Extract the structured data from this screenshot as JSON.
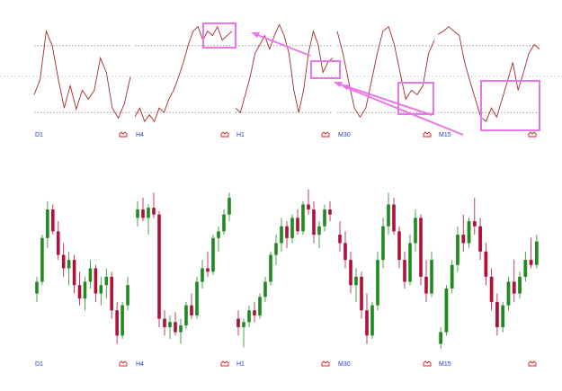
{
  "chart_data": [
    {
      "type": "line",
      "title": "D1",
      "color": "#a52a2a",
      "ylim": [
        0,
        100
      ],
      "levels": [
        80,
        20
      ],
      "values": [
        36,
        50,
        93,
        80,
        50,
        24,
        44,
        23,
        40,
        32,
        40,
        69,
        56,
        24,
        15,
        28,
        52
      ]
    },
    {
      "type": "line",
      "title": "H4",
      "color": "#a52a2a",
      "ylim": [
        0,
        100
      ],
      "levels": [
        80,
        20
      ],
      "values": [
        16,
        24,
        12,
        18,
        12,
        24,
        20,
        32,
        40,
        52,
        65,
        81,
        93,
        97,
        85,
        93,
        89,
        97,
        85,
        89,
        93
      ]
    },
    {
      "type": "line",
      "title": "H1",
      "color": "#a52a2a",
      "ylim": [
        0,
        100
      ],
      "levels": [
        80,
        20
      ],
      "values": [
        24,
        20,
        36,
        52,
        73,
        81,
        89,
        77,
        89,
        99,
        89,
        73,
        40,
        20,
        40,
        73,
        93,
        81,
        56,
        65,
        69
      ]
    },
    {
      "type": "line",
      "title": "M30",
      "color": "#a52a2a",
      "ylim": [
        0,
        100
      ],
      "levels": [
        80,
        20
      ],
      "values": [
        93,
        73,
        48,
        24,
        16,
        24,
        48,
        73,
        93,
        97,
        81,
        56,
        32,
        40,
        36,
        44,
        73,
        85
      ]
    },
    {
      "type": "line",
      "title": "M15",
      "color": "#a52a2a",
      "ylim": [
        0,
        100
      ],
      "levels": [
        80,
        20
      ],
      "values": [
        90,
        93,
        97,
        93,
        89,
        65,
        48,
        32,
        16,
        12,
        24,
        16,
        32,
        48,
        65,
        40,
        56,
        73,
        81,
        77
      ]
    },
    {
      "type": "candlestick",
      "title": "D1",
      "up_color": "#1f8a1f",
      "down_color": "#b0103a",
      "ylim": [
        0,
        100
      ],
      "open": [
        35,
        42,
        68,
        85,
        72,
        58,
        50,
        55,
        40,
        32,
        42,
        50,
        35,
        40,
        45,
        25,
        10,
        28
      ],
      "high": [
        45,
        70,
        90,
        88,
        78,
        65,
        60,
        58,
        48,
        45,
        55,
        52,
        45,
        50,
        48,
        30,
        30,
        45
      ],
      "low": [
        30,
        40,
        62,
        70,
        55,
        45,
        40,
        35,
        28,
        25,
        38,
        30,
        28,
        32,
        20,
        5,
        8,
        25
      ],
      "close": [
        42,
        68,
        85,
        72,
        58,
        50,
        55,
        40,
        32,
        42,
        50,
        35,
        40,
        45,
        25,
        10,
        28,
        40
      ]
    },
    {
      "type": "candlestick",
      "title": "H4",
      "up_color": "#1f8a1f",
      "down_color": "#b0103a",
      "ylim": [
        0,
        100
      ],
      "open": [
        80,
        85,
        80,
        86,
        82,
        20,
        15,
        18,
        12,
        16,
        28,
        22,
        42,
        50,
        48,
        68,
        72,
        82
      ],
      "high": [
        90,
        92,
        88,
        95,
        84,
        25,
        22,
        24,
        20,
        30,
        35,
        45,
        55,
        60,
        70,
        75,
        85,
        95
      ],
      "low": [
        75,
        78,
        70,
        80,
        15,
        10,
        8,
        10,
        5,
        14,
        20,
        20,
        38,
        45,
        46,
        60,
        70,
        78
      ],
      "close": [
        85,
        80,
        86,
        82,
        20,
        15,
        18,
        12,
        16,
        28,
        22,
        42,
        50,
        48,
        68,
        72,
        82,
        92
      ]
    },
    {
      "type": "candlestick",
      "title": "H1",
      "up_color": "#1f8a1f",
      "down_color": "#b0103a",
      "ylim": [
        0,
        100
      ],
      "open": [
        20,
        15,
        18,
        25,
        22,
        33,
        42,
        58,
        65,
        75,
        68,
        80,
        72,
        88,
        85,
        70,
        75,
        85
      ],
      "high": [
        25,
        20,
        28,
        30,
        35,
        45,
        60,
        70,
        80,
        78,
        82,
        85,
        90,
        97,
        90,
        78,
        88,
        90
      ],
      "low": [
        10,
        3,
        15,
        18,
        20,
        30,
        40,
        52,
        60,
        62,
        65,
        70,
        70,
        82,
        65,
        62,
        72,
        78
      ],
      "close": [
        15,
        18,
        25,
        22,
        33,
        42,
        58,
        65,
        75,
        68,
        80,
        72,
        88,
        85,
        70,
        75,
        85,
        82
      ]
    },
    {
      "type": "candlestick",
      "title": "M30",
      "up_color": "#1f8a1f",
      "down_color": "#b0103a",
      "ylim": [
        0,
        100
      ],
      "open": [
        70,
        65,
        55,
        40,
        45,
        25,
        10,
        28,
        55,
        75,
        88,
        72,
        55,
        42,
        65,
        80,
        45,
        35
      ],
      "high": [
        78,
        72,
        60,
        50,
        48,
        35,
        30,
        60,
        80,
        95,
        92,
        75,
        60,
        70,
        85,
        82,
        55,
        60
      ],
      "low": [
        60,
        50,
        35,
        30,
        20,
        5,
        8,
        25,
        50,
        70,
        70,
        50,
        38,
        40,
        60,
        40,
        30,
        33
      ],
      "close": [
        65,
        55,
        40,
        45,
        25,
        10,
        28,
        55,
        75,
        88,
        72,
        55,
        42,
        65,
        80,
        45,
        35,
        55
      ]
    },
    {
      "type": "candlestick",
      "title": "M15",
      "up_color": "#1f8a1f",
      "down_color": "#b0103a",
      "ylim": [
        0,
        100
      ],
      "open": [
        5,
        12,
        38,
        52,
        70,
        65,
        78,
        75,
        60,
        45,
        30,
        15,
        28,
        42,
        35,
        45,
        55,
        52
      ],
      "high": [
        15,
        40,
        55,
        75,
        82,
        80,
        92,
        80,
        65,
        50,
        35,
        30,
        45,
        55,
        48,
        60,
        68,
        70
      ],
      "low": [
        2,
        10,
        35,
        48,
        60,
        62,
        70,
        55,
        40,
        25,
        10,
        12,
        25,
        30,
        32,
        42,
        50,
        50
      ],
      "close": [
        12,
        38,
        52,
        70,
        65,
        78,
        75,
        60,
        45,
        30,
        15,
        28,
        42,
        35,
        45,
        55,
        52,
        66
      ]
    }
  ]
}
